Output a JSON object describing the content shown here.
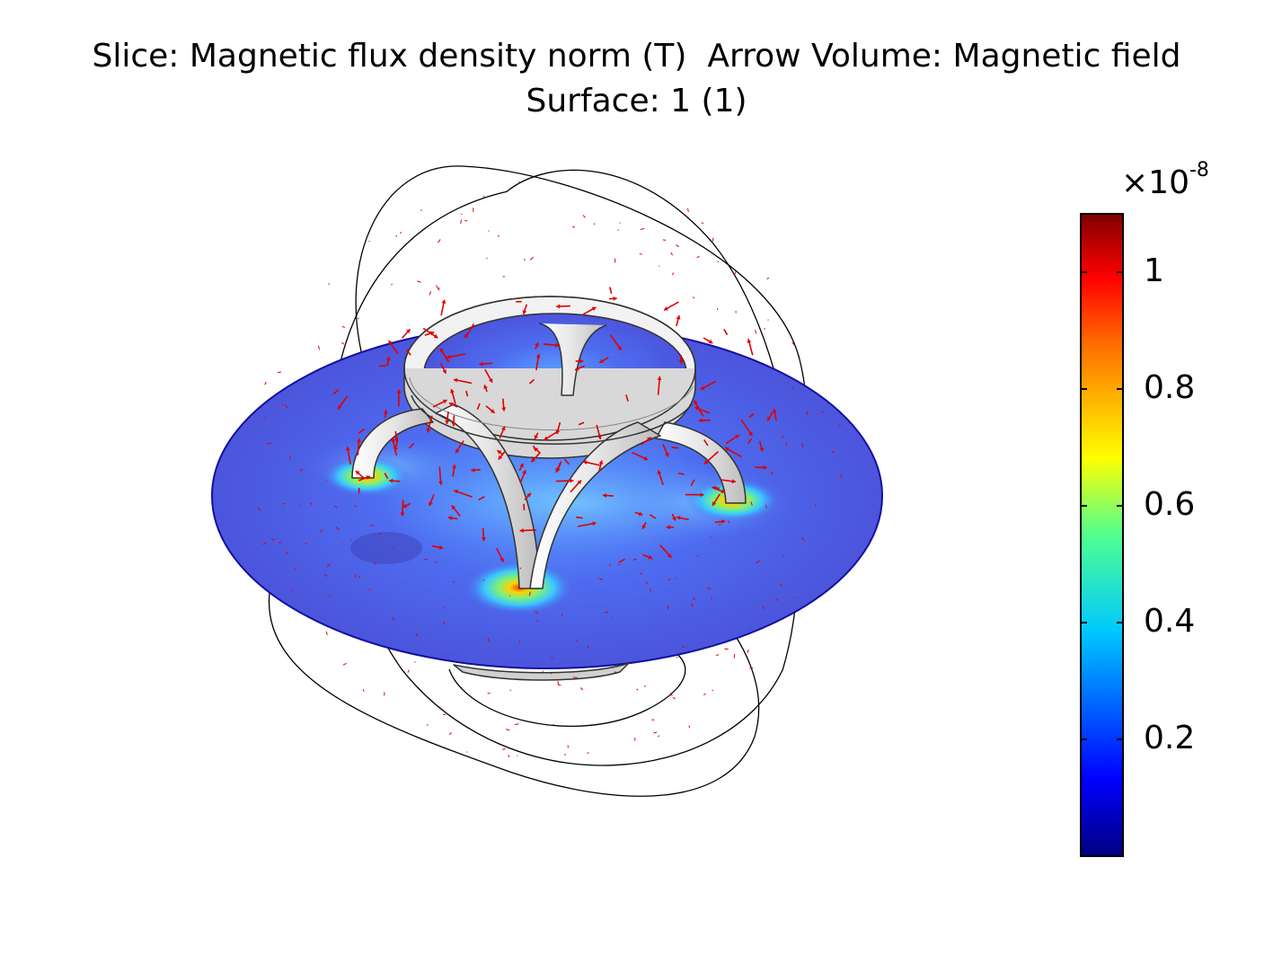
{
  "title": {
    "line1": "Slice: Magnetic flux density norm (T)  Arrow Volume: Magnetic field",
    "line2": "Surface: 1 (1)"
  },
  "colorbar": {
    "multiplier_prefix": "×10",
    "multiplier_exponent": "-8",
    "ticks": [
      "1",
      "0.8",
      "0.6",
      "0.4",
      "0.2"
    ],
    "tick_values": [
      1.0,
      0.8,
      0.6,
      0.4,
      0.2
    ],
    "range": [
      0.0,
      1.1
    ],
    "colormap": "rainbow"
  },
  "colors": {
    "slice_base": "#4a55e0",
    "hotspot_center": "#ffcc00",
    "arrow": "#e00000",
    "frame_line": "#000000",
    "coil": "#e8e8e8"
  }
}
